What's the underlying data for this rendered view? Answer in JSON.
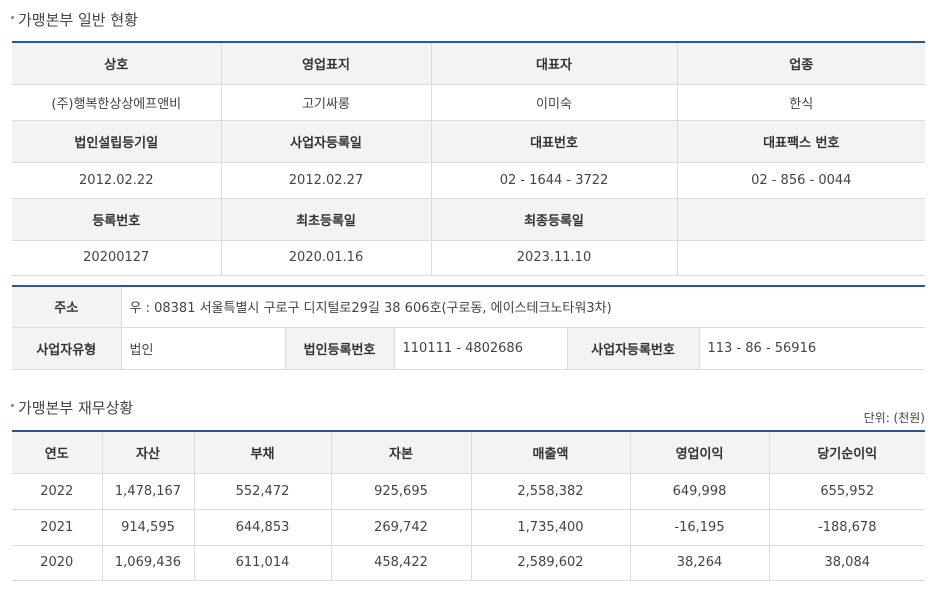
{
  "section1": {
    "title": "가맹본부 일반 현황",
    "row1_headers": [
      "상호",
      "영업표지",
      "대표자",
      "업종"
    ],
    "row1_values": [
      "(주)행복한상상에프앤비",
      "고기싸롱",
      "이미숙",
      "한식"
    ],
    "row2_headers": [
      "법인설립등기일",
      "사업자등록일",
      "대표번호",
      "대표팩스 번호"
    ],
    "row2_values": [
      "2012.02.22",
      "2012.02.27",
      "02 - 1644 - 3722",
      "02 - 856 - 0044"
    ],
    "row3_headers": [
      "등록번호",
      "최초등록일",
      "최종등록일",
      ""
    ],
    "row3_values": [
      "20200127",
      "2020.01.16",
      "2023.11.10",
      ""
    ]
  },
  "address": {
    "label": "주소",
    "value": "우 : 08381 서울특별시 구로구 디지털로29길 38 606호(구로동, 에이스테크노타워3차)",
    "biz_type_label": "사업자유형",
    "biz_type_value": "법인",
    "corp_reg_label": "법인등록번호",
    "corp_reg_value": "110111 - 4802686",
    "biz_reg_label": "사업자등록번호",
    "biz_reg_value": "113 - 86 - 56916"
  },
  "section2": {
    "title": "가맹본부 재무상황",
    "unit": "단위: (천원)",
    "headers": [
      "연도",
      "자산",
      "부채",
      "자본",
      "매출액",
      "영업이익",
      "당기순이익"
    ],
    "rows": [
      [
        "2022",
        "1,478,167",
        "552,472",
        "925,695",
        "2,558,382",
        "649,998",
        "655,952"
      ],
      [
        "2021",
        "914,595",
        "644,853",
        "269,742",
        "1,735,400",
        "-16,195",
        "-188,678"
      ],
      [
        "2020",
        "1,069,436",
        "611,014",
        "458,422",
        "2,589,602",
        "38,264",
        "38,084"
      ]
    ]
  }
}
